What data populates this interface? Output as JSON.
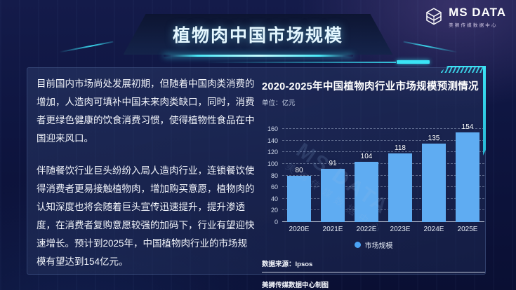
{
  "logo": {
    "name": "MS DATA",
    "subtitle": "美狮传媒数据中心"
  },
  "header": {
    "title": "植物肉中国市场规模"
  },
  "left_panel": {
    "paragraph1": "目前国内市场尚处发展初期，但随着中国肉类消费的增加，人造肉可填补中国未来肉类缺口，同时，消费者更绿色健康的饮食消费习惯，使得植物性食品在中国迎来风口。",
    "paragraph2": "伴随餐饮行业巨头纷纷入局人造肉行业，连锁餐饮使得消费者更易接触植物肉，增加购买意愿，植物肉的认知深度也将会随着巨头宣传迅速提升，提升渗透度，在消费者复购意愿较强的加码下，行业有望迎快速增长。预计到2025年，中国植物肉行业的市场规模有望达到154亿元。"
  },
  "chart_section": {
    "title": "2020-2025年中国植物肉行业市场规模预测情况",
    "unit_label": "单位：亿元",
    "legend_label": "市场规模",
    "source_label": "数据来源：Ipsos",
    "credit_label": "美狮传媒数据中心制图",
    "watermark": "MS DATA",
    "watermark_sub": "美狮传媒数据中心"
  },
  "chart_data": {
    "type": "bar",
    "title": "2020-2025年中国植物肉行业市场规模预测情况",
    "categories": [
      "2020E",
      "2021E",
      "2022E",
      "2023E",
      "2024E",
      "2025E"
    ],
    "values": [
      80,
      91,
      104,
      118,
      135,
      154
    ],
    "xlabel": "",
    "ylabel": "亿元",
    "ylim": [
      0,
      160
    ],
    "ytick_step": 20,
    "grid": true,
    "grid_style": "dashed",
    "legend": [
      "市场规模"
    ],
    "legend_position": "bottom",
    "bar_color": "#5FACF2"
  },
  "colors": {
    "background": "#0e1540",
    "accent_cyan": "#3ae4f5",
    "bar_blue": "#5FACF2",
    "legend_dot": "#4aa3f5"
  }
}
